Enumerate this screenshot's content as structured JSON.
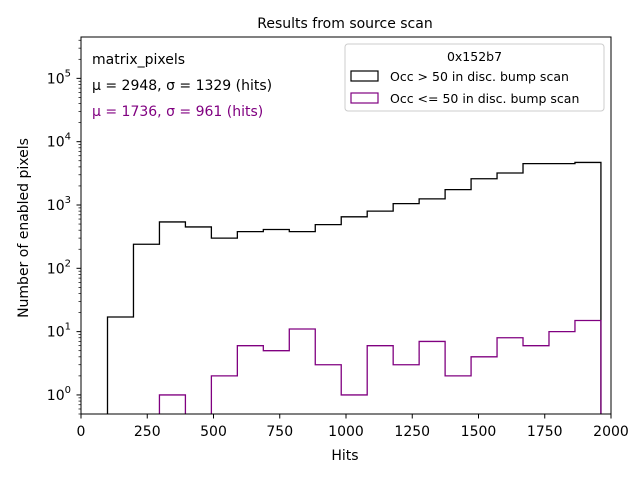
{
  "chart_data": {
    "type": "histogram",
    "title": "Results from source scan",
    "xlabel": "Hits",
    "ylabel": "Number of enabled pixels",
    "yscale": "log",
    "xlim": [
      0,
      2000
    ],
    "ylim": [
      0.5,
      450000
    ],
    "xticks": [
      0,
      250,
      500,
      750,
      1000,
      1250,
      1500,
      1750,
      2000
    ],
    "xtick_labels": [
      "0",
      "250",
      "500",
      "750",
      "1000",
      "1250",
      "1500",
      "1750",
      "2000"
    ],
    "yticks": [
      {
        "base": "10",
        "exp": "0",
        "value": 1
      },
      {
        "base": "10",
        "exp": "1",
        "value": 10
      },
      {
        "base": "10",
        "exp": "2",
        "value": 100
      },
      {
        "base": "10",
        "exp": "3",
        "value": 1000
      },
      {
        "base": "10",
        "exp": "4",
        "value": 10000
      },
      {
        "base": "10",
        "exp": "5",
        "value": 100000
      }
    ],
    "legend": {
      "title": "0x152b7",
      "location": "upper right"
    },
    "annotations": [
      {
        "text": "matrix_pixels",
        "color": "#000000"
      },
      {
        "text": "μ = 2948, σ = 1329 (hits)",
        "color": "#000000"
      },
      {
        "text": "μ = 1736, σ = 961 (hits)",
        "color": "#800080"
      }
    ],
    "series": [
      {
        "name": "Occ > 50 in disc. bump scan",
        "color": "#000000",
        "bin_edges": [
          100,
          198,
          296,
          394,
          492,
          590,
          688,
          786,
          884,
          982,
          1080,
          1178,
          1276,
          1374,
          1472,
          1570,
          1668,
          1766,
          1864,
          1962
        ],
        "values": [
          17,
          240,
          540,
          450,
          300,
          380,
          410,
          380,
          490,
          650,
          800,
          1050,
          1250,
          1750,
          2600,
          3200,
          4500,
          4500,
          4700
        ]
      },
      {
        "name": "Occ <= 50 in disc. bump scan",
        "color": "#800080",
        "bin_edges": [
          100,
          198,
          296,
          394,
          492,
          590,
          688,
          786,
          884,
          982,
          1080,
          1178,
          1276,
          1374,
          1472,
          1570,
          1668,
          1766,
          1864,
          1962
        ],
        "values": [
          0,
          0,
          1,
          0,
          2,
          6,
          5,
          11,
          3,
          1,
          6,
          3,
          7,
          2,
          4,
          8,
          6,
          10,
          15
        ]
      }
    ]
  }
}
